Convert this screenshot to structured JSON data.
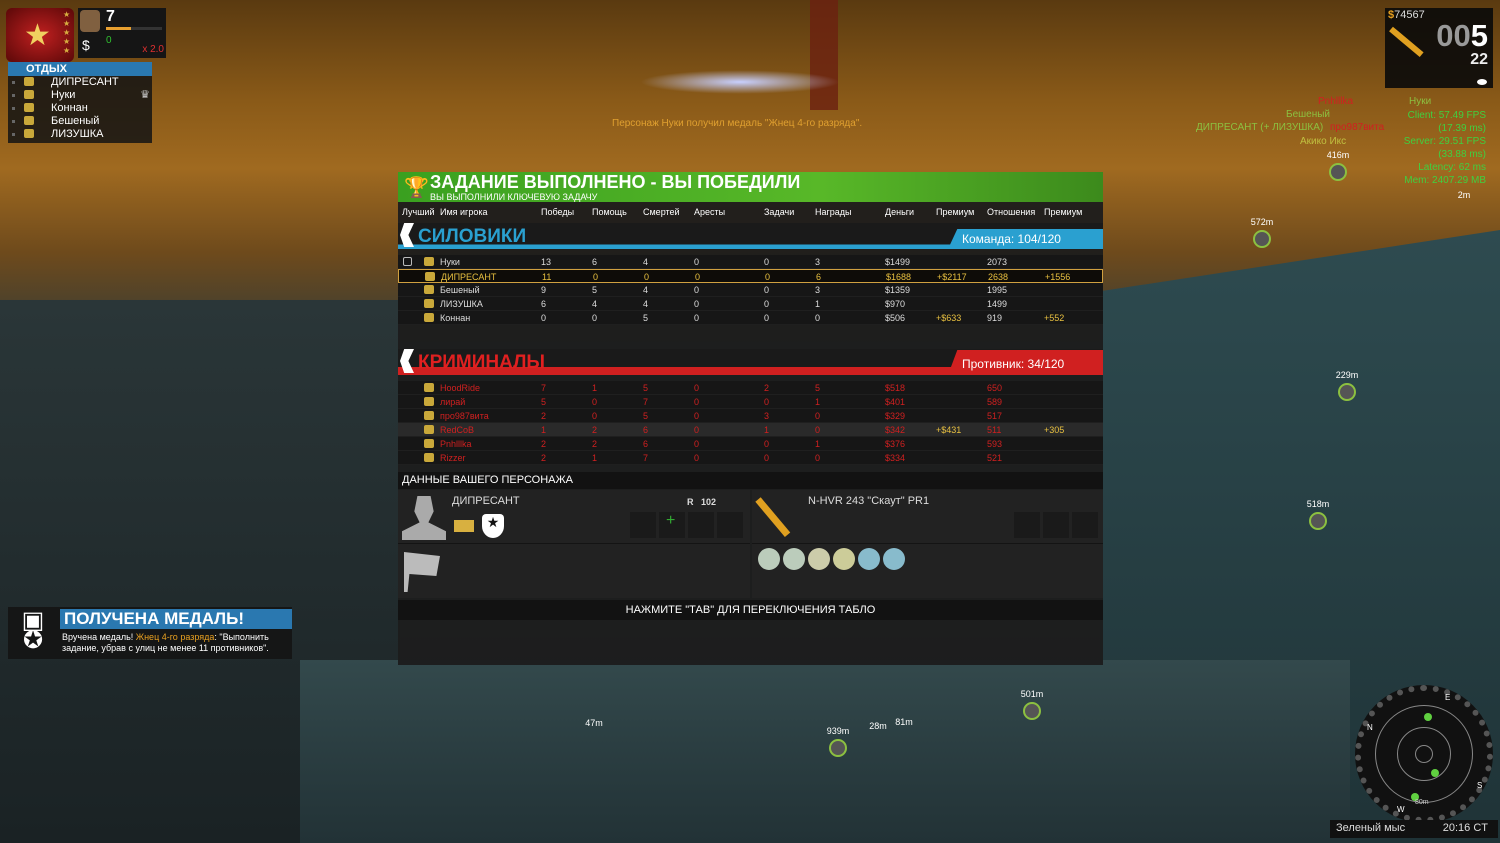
{
  "hud": {
    "level": "7",
    "money_earned": "0",
    "multiplier": "x 2.0",
    "group": {
      "title": "ОТДЫХ",
      "members": [
        "ДИПРЕСАНТ",
        "Нуки",
        "Коннан",
        "Бешеный",
        "ЛИЗУШКА"
      ],
      "leader": "Нуки"
    },
    "xp_progress": 0.45,
    "cash": "74567",
    "clip_dim": "00",
    "clip_bright": "5",
    "reserve": "22",
    "perf": [
      "Client: 57.49 FPS",
      "(17.39 ms)",
      "Server: 29.51 FPS",
      "(33.88 ms)",
      "Latency: 62 ms",
      "Mem: 2407.29 MB"
    ],
    "killfeed": [
      {
        "name": "Pnhlllka",
        "color": "#d02020"
      },
      {
        "name": "Нуки",
        "color": "#8cc040"
      },
      {
        "name": "Бешеный",
        "color": "#8cc040"
      },
      {
        "name": "про987вита",
        "color": "#d02020"
      },
      {
        "name": "ДИПРЕСАНТ (+ ЛИЗУШКА)",
        "color": "#8cc040"
      },
      {
        "name": "Акико Икс",
        "color": "#c0c040"
      }
    ],
    "notice": "Персонаж Нуки получил медаль \"Жнец 4-го разряда\".",
    "markers": [
      "416m",
      "2m",
      "572m",
      "229m",
      "518m",
      "501m",
      "939m",
      "28m",
      "81m",
      "47m"
    ]
  },
  "scoreboard": {
    "title": "ЗАДАНИЕ ВЫПОЛНЕНО - ВЫ ПОБЕДИЛИ",
    "subtitle": "ВЫ ВЫПОЛНИЛИ КЛЮЧЕВУЮ ЗАДАЧУ",
    "columns": [
      "Лучший",
      "Имя игрока",
      "Победы",
      "Помощь",
      "Смертей",
      "Аресты",
      "Задачи",
      "Награды",
      "Деньги",
      "Премиум",
      "Отношения",
      "Премиум"
    ],
    "teams": [
      {
        "name": "СИЛОВИКИ",
        "score": "Команда: 104/120",
        "color": "#2aa0d0",
        "rows": [
          [
            "Нуки",
            "13",
            "6",
            "4",
            "0",
            "0",
            "3",
            "$1499",
            "",
            "2073",
            ""
          ],
          [
            "ДИПРЕСАНТ",
            "11",
            "0",
            "0",
            "0",
            "0",
            "6",
            "$1688",
            "+$2117",
            "2638",
            "+1556"
          ],
          [
            "Бешеный",
            "9",
            "5",
            "4",
            "0",
            "0",
            "3",
            "$1359",
            "",
            "1995",
            ""
          ],
          [
            "ЛИЗУШКА",
            "6",
            "4",
            "4",
            "0",
            "0",
            "1",
            "$970",
            "",
            "1499",
            ""
          ],
          [
            "Коннан",
            "0",
            "0",
            "5",
            "0",
            "0",
            "0",
            "$506",
            "+$633",
            "919",
            "+552"
          ]
        ]
      },
      {
        "name": "КРИМИНАЛЫ",
        "score": "Противник: 34/120",
        "color": "#d02020",
        "rows": [
          [
            "HoodRide",
            "7",
            "1",
            "5",
            "0",
            "2",
            "5",
            "$518",
            "",
            "650",
            ""
          ],
          [
            "лирай",
            "5",
            "0",
            "7",
            "0",
            "0",
            "1",
            "$401",
            "",
            "589",
            ""
          ],
          [
            "про987вита",
            "2",
            "0",
            "5",
            "0",
            "3",
            "0",
            "$329",
            "",
            "517",
            ""
          ],
          [
            "RedCoB",
            "1",
            "2",
            "6",
            "0",
            "1",
            "0",
            "$342",
            "+$431",
            "511",
            "+305"
          ],
          [
            "Pnhlllka",
            "2",
            "2",
            "6",
            "0",
            "0",
            "1",
            "$376",
            "",
            "593",
            ""
          ],
          [
            "Rizzer",
            "2",
            "1",
            "7",
            "0",
            "0",
            "0",
            "$334",
            "",
            "521",
            ""
          ]
        ]
      }
    ],
    "character": {
      "header": "ДАННЫЕ ВАШЕГО ПЕРСОНАЖА",
      "name": "ДИПРЕСАНТ",
      "rating_label": "R",
      "rating": "102",
      "weapon": "N-HVR 243 \"Скаут\" PR1"
    },
    "footer": "НАЖМИТЕ \"ТАВ\" ДЛЯ ПЕРЕКЛЮЧЕНИЯ ТАБЛО"
  },
  "medal_popup": {
    "title": "ПОЛУЧЕНА МЕДАЛЬ!",
    "text_pre": "Вручена медаль! ",
    "medal": "Жнец 4-го разряда",
    "text_post": ": \"Выполнить задание, убрав с улиц не менее 11 противников\"."
  },
  "minimap": {
    "range": "80m",
    "compass": [
      "N",
      "E",
      "S",
      "W"
    ],
    "location": "Зеленый мыс",
    "time": "20:16 CT"
  }
}
